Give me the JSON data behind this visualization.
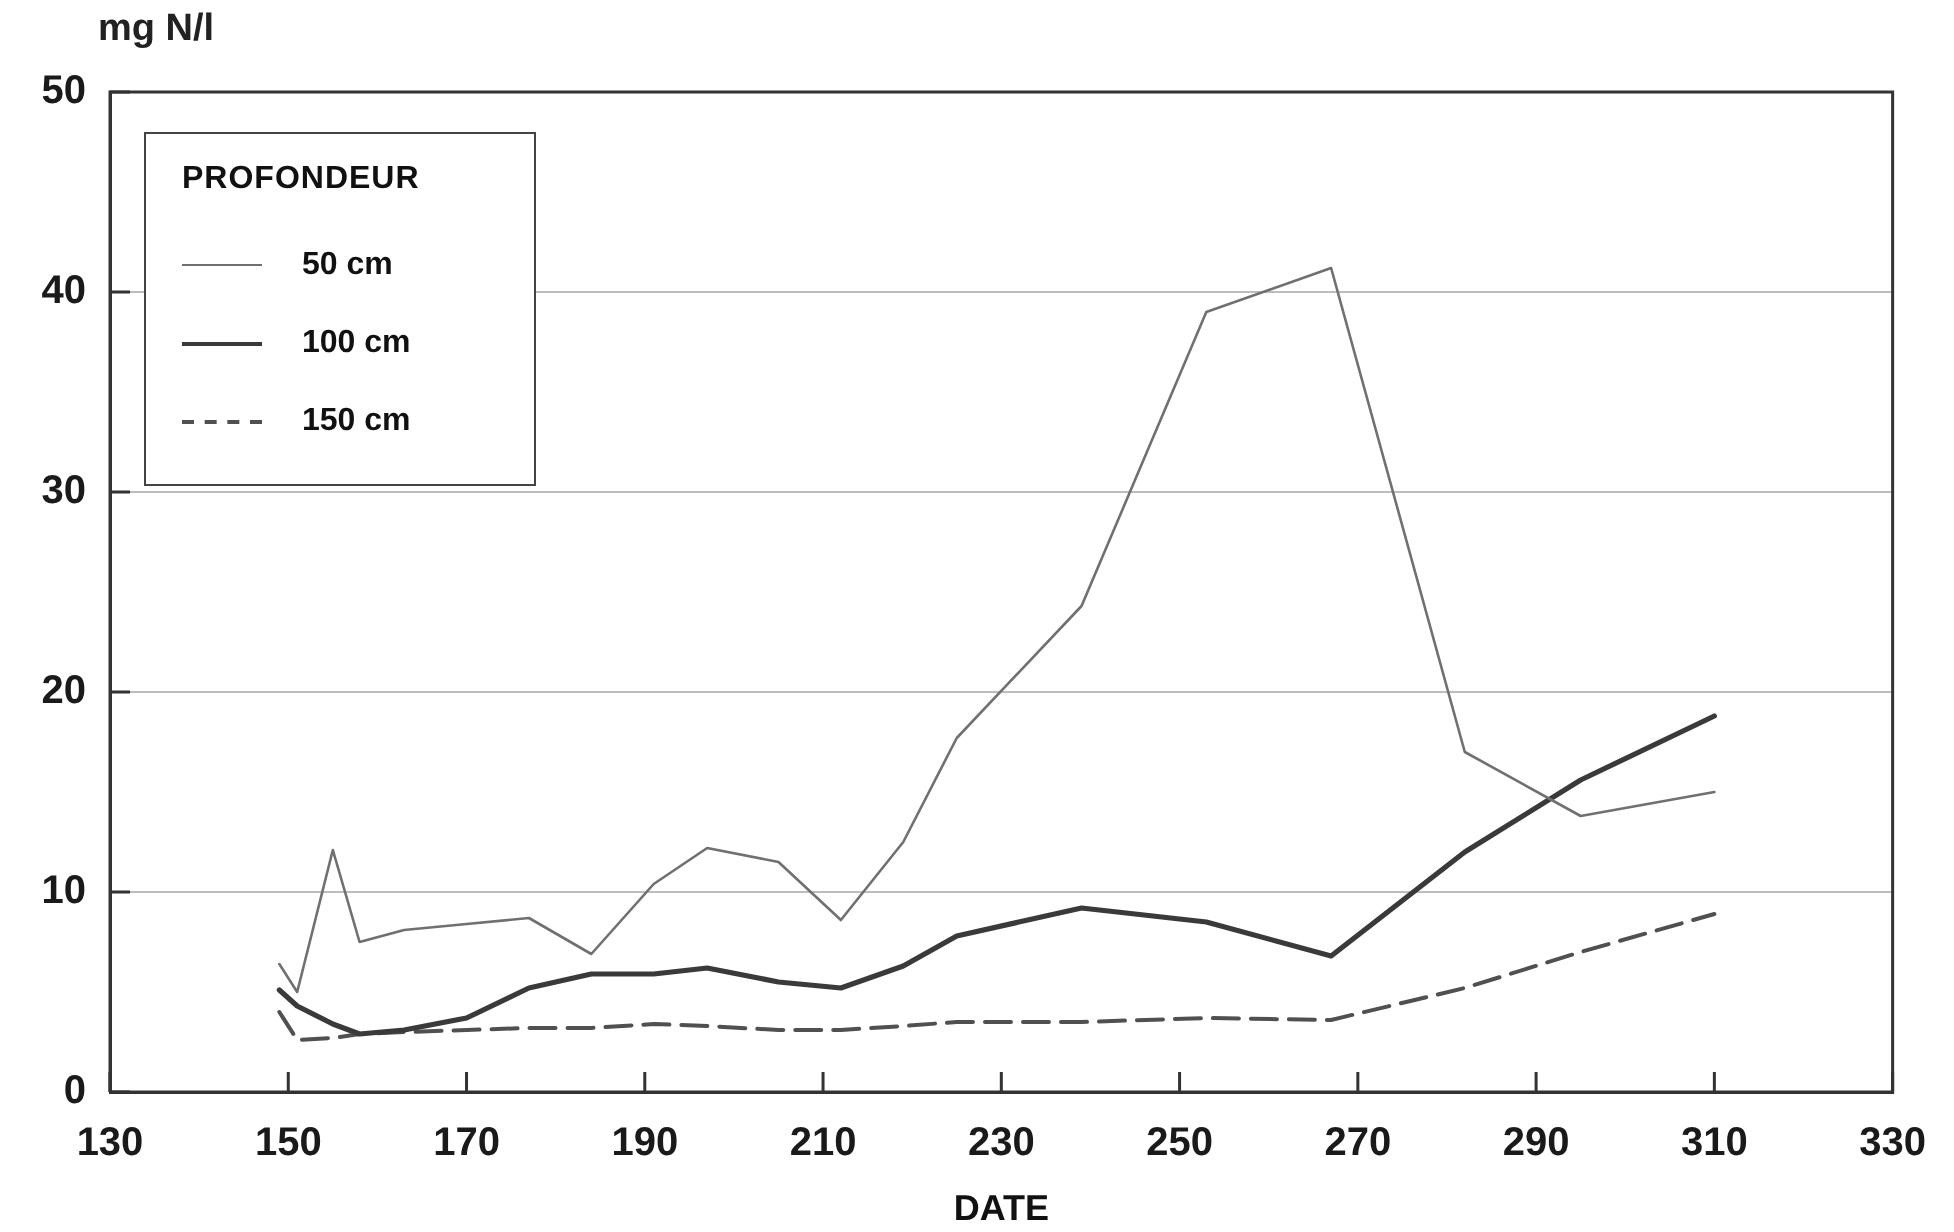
{
  "chart_data": {
    "type": "line",
    "ylabel": "mg N/l",
    "xlabel": "DATE",
    "legend_title": "PROFONDEUR",
    "legend": "top left",
    "grid": "y",
    "x": [
      149,
      151,
      155,
      158,
      163,
      170,
      177,
      184,
      191,
      197,
      205,
      212,
      219,
      225,
      239,
      253,
      267,
      282,
      295,
      310
    ],
    "series": [
      {
        "name": "50 cm",
        "color": "#707070",
        "line_style": "solid",
        "values": [
          6.4,
          5.0,
          12.1,
          7.5,
          8.1,
          8.4,
          8.7,
          6.9,
          10.4,
          12.2,
          11.5,
          8.6,
          12.5,
          17.7,
          24.3,
          39.0,
          41.2,
          17.0,
          13.8,
          15.0
        ]
      },
      {
        "name": "100 cm",
        "color": "#3a3a3a",
        "line_style": "solid",
        "values": [
          5.1,
          4.3,
          3.4,
          2.9,
          3.1,
          3.7,
          5.2,
          5.9,
          5.9,
          6.2,
          5.5,
          5.2,
          6.3,
          7.8,
          9.2,
          8.5,
          6.8,
          12.0,
          15.6,
          18.8
        ]
      },
      {
        "name": "150 cm",
        "color": "#505050",
        "line_style": "dashed",
        "values": [
          4.0,
          2.6,
          2.7,
          2.9,
          3.0,
          3.1,
          3.2,
          3.2,
          3.4,
          3.3,
          3.1,
          3.1,
          3.3,
          3.5,
          3.5,
          3.7,
          3.6,
          5.2,
          7.0,
          8.9
        ]
      }
    ],
    "xlim": [
      130,
      330
    ],
    "xticks": [
      130,
      150,
      170,
      190,
      210,
      230,
      250,
      270,
      290,
      310,
      330
    ],
    "ylim": [
      0,
      50
    ],
    "yticks": [
      0,
      10,
      20,
      30,
      40,
      50
    ]
  }
}
